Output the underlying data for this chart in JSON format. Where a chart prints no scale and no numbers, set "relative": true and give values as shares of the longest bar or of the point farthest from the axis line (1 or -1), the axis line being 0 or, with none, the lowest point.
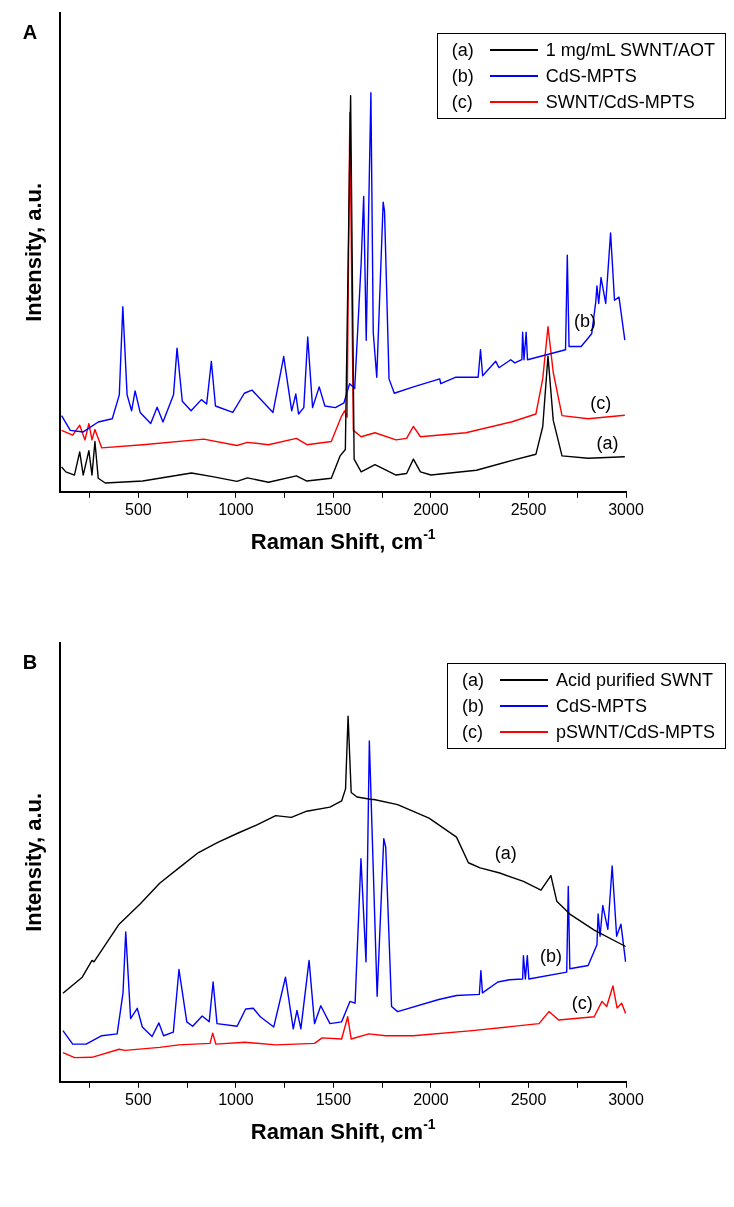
{
  "chart_data": [
    {
      "type": "line",
      "title": "A",
      "xlabel": "Raman Shift, cm$^{-1}$",
      "ylabel": "Intensity, a.u.",
      "relative": true,
      "legend": "top right",
      "xlim": [
        100,
        3000
      ],
      "xticks": [
        {
          "value": 250,
          "label": null
        },
        500,
        {
          "value": 750,
          "label": null
        },
        1000,
        {
          "value": 1250,
          "label": null
        },
        1500,
        {
          "value": 1750,
          "label": null
        },
        2000,
        {
          "value": 2250,
          "label": null
        },
        2500,
        {
          "value": 2750,
          "label": null
        },
        3000
      ],
      "series": [
        {
          "name": "1 mg/mL SWNT/AOT",
          "color": "#000000",
          "x": [
            106,
            128,
            172,
            199,
            217,
            246,
            262,
            277,
            294,
            330,
            522,
            772,
            880,
            1005,
            1059,
            1167,
            1310,
            1364,
            1489,
            1534,
            1561,
            1588,
            1606,
            1642,
            1713,
            1821,
            1875,
            1910,
            1946,
            2000,
            2233,
            2412,
            2538,
            2573,
            2600,
            2627,
            2672,
            2806,
            2994
          ],
          "values": [
            0.062,
            0.05,
            0.042,
            0.1,
            0.042,
            0.103,
            0.042,
            0.126,
            0.034,
            0.022,
            0.027,
            0.047,
            0.038,
            0.026,
            0.035,
            0.024,
            0.04,
            0.027,
            0.034,
            0.09,
            0.106,
            0.993,
            0.082,
            0.05,
            0.068,
            0.042,
            0.046,
            0.082,
            0.05,
            0.042,
            0.054,
            0.078,
            0.094,
            0.163,
            0.34,
            0.179,
            0.09,
            0.084,
            0.088
          ]
        },
        {
          "name": "CdS-MPTS",
          "color": "#0000ff",
          "x": [
            106,
            151,
            217,
            294,
            366,
            402,
            420,
            442,
            465,
            483,
            509,
            563,
            596,
            626,
            680,
            698,
            725,
            770,
            823,
            850,
            874,
            895,
            984,
            1043,
            1082,
            1136,
            1190,
            1245,
            1286,
            1307,
            1321,
            1348,
            1368,
            1393,
            1427,
            1456,
            1510,
            1554,
            1583,
            1609,
            1642,
            1655,
            1668,
            1692,
            1704,
            1722,
            1755,
            1762,
            1785,
            1812,
            1910,
            2045,
            2050,
            2125,
            2242,
            2254,
            2265,
            2332,
            2349,
            2409,
            2430,
            2466,
            2470,
            2477,
            2488,
            2495,
            2690,
            2699,
            2708,
            2770,
            2824,
            2845,
            2851,
            2860,
            2872,
            2896,
            2921,
            2941,
            2964,
            2994
          ],
          "values": [
            0.191,
            0.154,
            0.15,
            0.175,
            0.183,
            0.243,
            0.464,
            0.243,
            0.203,
            0.253,
            0.199,
            0.171,
            0.212,
            0.175,
            0.243,
            0.36,
            0.227,
            0.203,
            0.231,
            0.22,
            0.327,
            0.215,
            0.199,
            0.247,
            0.255,
            0.227,
            0.199,
            0.339,
            0.203,
            0.245,
            0.195,
            0.211,
            0.388,
            0.211,
            0.263,
            0.215,
            0.211,
            0.223,
            0.271,
            0.259,
            0.573,
            0.74,
            0.38,
            1,
            0.4,
            0.287,
            0.726,
            0.702,
            0.283,
            0.247,
            0.263,
            0.283,
            0.271,
            0.287,
            0.287,
            0.356,
            0.291,
            0.327,
            0.311,
            0.331,
            0.323,
            0.331,
            0.4,
            0.331,
            0.4,
            0.331,
            0.356,
            0.593,
            0.364,
            0.364,
            0.396,
            0.476,
            0.516,
            0.472,
            0.537,
            0.472,
            0.649,
            0.48,
            0.488,
            0.38
          ]
        },
        {
          "name": "SWNT/CdS-MPTS",
          "color": "#ff0000",
          "x": [
            106,
            163,
            199,
            226,
            246,
            262,
            277,
            312,
            522,
            835,
            1005,
            1059,
            1167,
            1310,
            1364,
            1489,
            1539,
            1557,
            1570,
            1584,
            1602,
            1642,
            1713,
            1821,
            1875,
            1910,
            1946,
            2179,
            2412,
            2538,
            2573,
            2600,
            2627,
            2672,
            2806,
            2994
          ],
          "values": [
            0.154,
            0.142,
            0.167,
            0.13,
            0.171,
            0.13,
            0.156,
            0.11,
            0.118,
            0.132,
            0.116,
            0.124,
            0.118,
            0.134,
            0.118,
            0.126,
            0.187,
            0.203,
            0.187,
            0.951,
            0.154,
            0.138,
            0.148,
            0.13,
            0.134,
            0.164,
            0.138,
            0.148,
            0.175,
            0.195,
            0.283,
            0.414,
            0.299,
            0.191,
            0.183,
            0.192
          ]
        }
      ],
      "annotations": [
        "(a)",
        "(b)",
        "(c)"
      ]
    },
    {
      "type": "line",
      "title": "B",
      "xlabel": "Raman Shift, cm$^{-1}$",
      "ylabel": "Intensity, a.u.",
      "relative": true,
      "legend": "top right",
      "xlim": [
        100,
        3000
      ],
      "xticks": [
        {
          "value": 250,
          "label": null
        },
        500,
        {
          "value": 750,
          "label": null
        },
        1000,
        {
          "value": 1250,
          "label": null
        },
        1500,
        {
          "value": 1750,
          "label": null
        },
        2000,
        {
          "value": 2250,
          "label": null
        },
        2500,
        {
          "value": 2750,
          "label": null
        },
        3000
      ],
      "series": [
        {
          "name": "Acid purified SWNT",
          "color": "#000000",
          "x": [
            113,
            212,
            262,
            272,
            401,
            510,
            609,
            708,
            808,
            907,
            1006,
            1105,
            1204,
            1284,
            1363,
            1482,
            1542,
            1562,
            1575,
            1591,
            1621,
            1696,
            1708,
            1829,
            1990,
            2131,
            2192,
            2252,
            2353,
            2474,
            2564,
            2615,
            2645,
            2716,
            2837,
            2998
          ],
          "values": [
            0.242,
            0.286,
            0.332,
            0.328,
            0.431,
            0.487,
            0.543,
            0.585,
            0.627,
            0.655,
            0.679,
            0.702,
            0.728,
            0.723,
            0.74,
            0.751,
            0.768,
            0.801,
            1,
            0.791,
            0.779,
            0.772,
            0.772,
            0.758,
            0.721,
            0.669,
            0.599,
            0.585,
            0.571,
            0.548,
            0.524,
            0.564,
            0.494,
            0.457,
            0.415,
            0.37
          ]
        },
        {
          "name": "CdS-MPTS",
          "color": "#0000ff",
          "x": [
            113,
            163,
            232,
            312,
            391,
            421,
            435,
            460,
            494,
            520,
            570,
            605,
            629,
            679,
            708,
            748,
            778,
            827,
            863,
            883,
            903,
            1006,
            1050,
            1089,
            1125,
            1194,
            1254,
            1294,
            1313,
            1333,
            1375,
            1403,
            1435,
            1482,
            1542,
            1585,
            1611,
            1641,
            1667,
            1684,
            1724,
            1758,
            1768,
            1798,
            1829,
            2040,
            2131,
            2248,
            2256,
            2264,
            2343,
            2403,
            2470,
            2474,
            2484,
            2494,
            2502,
            2696,
            2704,
            2712,
            2806,
            2851,
            2857,
            2867,
            2881,
            2907,
            2929,
            2952,
            2974,
            2998
          ],
          "values": [
            0.14,
            0.103,
            0.103,
            0.126,
            0.131,
            0.243,
            0.41,
            0.173,
            0.201,
            0.15,
            0.124,
            0.161,
            0.126,
            0.136,
            0.307,
            0.164,
            0.152,
            0.18,
            0.164,
            0.273,
            0.159,
            0.152,
            0.199,
            0.201,
            0.178,
            0.15,
            0.286,
            0.145,
            0.195,
            0.145,
            0.332,
            0.159,
            0.208,
            0.159,
            0.164,
            0.22,
            0.215,
            0.61,
            0.328,
            0.932,
            0.234,
            0.665,
            0.642,
            0.206,
            0.192,
            0.225,
            0.236,
            0.239,
            0.304,
            0.243,
            0.273,
            0.279,
            0.281,
            0.345,
            0.281,
            0.345,
            0.281,
            0.3,
            0.534,
            0.309,
            0.318,
            0.375,
            0.459,
            0.398,
            0.482,
            0.417,
            0.59,
            0.398,
            0.431,
            0.328
          ]
        },
        {
          "name": "pSWNT/CdS-MPTS",
          "color": "#ff0000",
          "x": [
            113,
            173,
            262,
            401,
            431,
            609,
            708,
            867,
            881,
            897,
            1046,
            1204,
            1403,
            1442,
            1542,
            1573,
            1591,
            1681,
            1768,
            1909,
            2212,
            2554,
            2605,
            2655,
            2837,
            2877,
            2901,
            2933,
            2954,
            2978,
            2998
          ],
          "values": [
            0.08,
            0.066,
            0.067,
            0.089,
            0.086,
            0.094,
            0.101,
            0.105,
            0.133,
            0.103,
            0.108,
            0.101,
            0.105,
            0.12,
            0.117,
            0.178,
            0.117,
            0.131,
            0.126,
            0.126,
            0.14,
            0.159,
            0.192,
            0.169,
            0.178,
            0.22,
            0.206,
            0.262,
            0.202,
            0.215,
            0.187
          ]
        }
      ],
      "annotations": [
        "(a)",
        "(b)",
        "(c)"
      ]
    }
  ]
}
